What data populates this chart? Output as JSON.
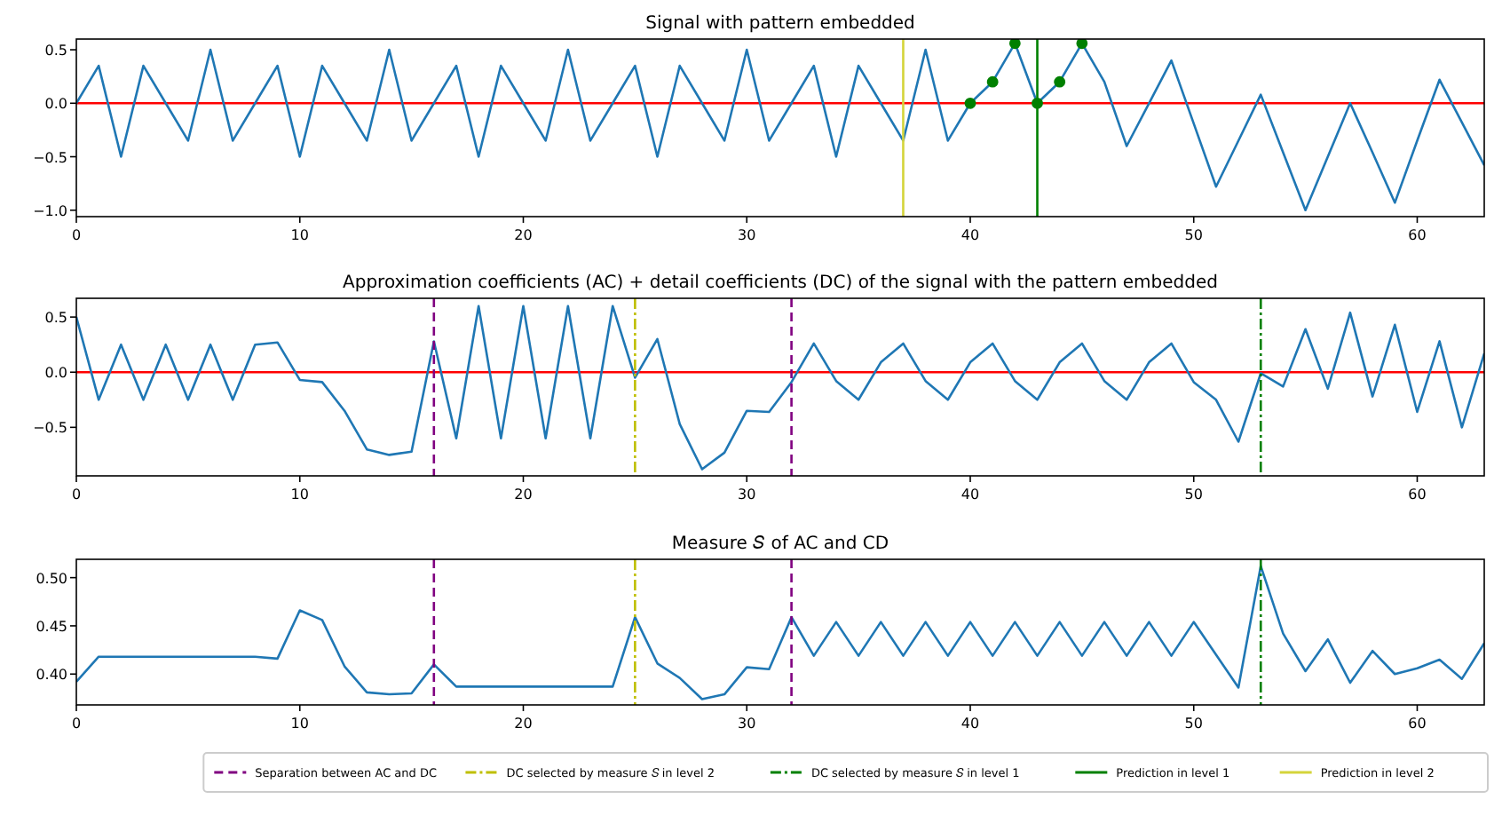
{
  "chart_data": [
    {
      "type": "line",
      "title": "Signal with pattern embedded",
      "legend": "bottom",
      "xlim": [
        0,
        63
      ],
      "xticks": [
        0,
        10,
        20,
        30,
        40,
        50,
        60
      ],
      "ylim": [
        -1.06,
        0.6
      ],
      "yticks": [
        {
          "value": -1,
          "label": "−1.0"
        },
        {
          "value": -0.5,
          "label": "−0.5"
        },
        {
          "value": 0,
          "label": "0.0"
        },
        {
          "value": 0.5,
          "label": "0.5"
        }
      ],
      "series": [
        {
          "color": "#1f77b4",
          "x": [
            0,
            1,
            2,
            3,
            4,
            5,
            6,
            7,
            8,
            9,
            10,
            11,
            12,
            13,
            14,
            15,
            16,
            17,
            18,
            19,
            20,
            21,
            22,
            23,
            24,
            25,
            26,
            27,
            28,
            29,
            30,
            31,
            32,
            33,
            34,
            35,
            36,
            37,
            38,
            39,
            40,
            41,
            42,
            43,
            44,
            45,
            46,
            47,
            48,
            49,
            50,
            51,
            52,
            53,
            54,
            55,
            56,
            57,
            58,
            59,
            60,
            61,
            62,
            63
          ],
          "values": [
            0,
            0.35,
            -0.5,
            0.35,
            0,
            -0.35,
            0.5,
            -0.35,
            0,
            0.35,
            -0.5,
            0.35,
            0,
            -0.35,
            0.5,
            -0.35,
            0,
            0.35,
            -0.5,
            0.35,
            0,
            -0.35,
            0.5,
            -0.35,
            0,
            0.35,
            -0.5,
            0.35,
            0,
            -0.35,
            0.5,
            -0.35,
            0,
            0.35,
            -0.5,
            0.35,
            0,
            -0.35,
            0.5,
            -0.35,
            0,
            0.2,
            0.56,
            0,
            0.2,
            0.56,
            0.2,
            -0.4,
            0,
            0.4,
            -0.19,
            -0.78,
            -0.35,
            0.08,
            -0.46,
            -1.0,
            -0.5,
            0,
            -0.46,
            -0.93,
            -0.35,
            0.22,
            -0.18,
            -0.58
          ]
        },
        {
          "type": "scatter",
          "color": "#008000",
          "marker": "circle",
          "x": [
            40,
            41,
            42,
            43,
            44,
            45
          ],
          "values": [
            0,
            0.2,
            0.56,
            0,
            0.2,
            0.56
          ]
        }
      ],
      "ref_lines": [
        {
          "axis": "y",
          "value": 0,
          "color": "#ff0000",
          "line_style": "solid"
        },
        {
          "axis": "x",
          "value": 43,
          "color": "#008000",
          "line_style": "solid",
          "label": "Prediction in level 1"
        },
        {
          "axis": "x",
          "value": 37,
          "color": "#d4d43a",
          "line_style": "solid",
          "label": "Prediction in level 2"
        }
      ]
    },
    {
      "type": "line",
      "title": "Approximation coefficients (AC) + detail coefficients (DC) of the signal with the pattern embedded",
      "xlim": [
        0,
        63
      ],
      "xticks": [
        0,
        10,
        20,
        30,
        40,
        50,
        60
      ],
      "ylim": [
        -0.94,
        0.67
      ],
      "yticks": [
        {
          "value": -0.5,
          "label": "−0.5"
        },
        {
          "value": 0,
          "label": "0.0"
        },
        {
          "value": 0.5,
          "label": "0.5"
        }
      ],
      "series": [
        {
          "color": "#1f77b4",
          "x": [
            0,
            1,
            2,
            3,
            4,
            5,
            6,
            7,
            8,
            9,
            10,
            11,
            12,
            13,
            14,
            15,
            16,
            17,
            18,
            19,
            20,
            21,
            22,
            23,
            24,
            25,
            26,
            27,
            28,
            29,
            30,
            31,
            32,
            33,
            34,
            35,
            36,
            37,
            38,
            39,
            40,
            41,
            42,
            43,
            44,
            45,
            46,
            47,
            48,
            49,
            50,
            51,
            52,
            53,
            54,
            55,
            56,
            57,
            58,
            59,
            60,
            61,
            62,
            63
          ],
          "values": [
            0.5,
            -0.25,
            0.25,
            -0.25,
            0.25,
            -0.25,
            0.25,
            -0.25,
            0.25,
            0.27,
            -0.07,
            -0.09,
            -0.35,
            -0.7,
            -0.75,
            -0.72,
            0.28,
            -0.6,
            0.6,
            -0.6,
            0.6,
            -0.6,
            0.6,
            -0.6,
            0.6,
            -0.05,
            0.3,
            -0.47,
            -0.88,
            -0.73,
            -0.35,
            -0.36,
            -0.09,
            0.26,
            -0.08,
            -0.25,
            0.09,
            0.26,
            -0.08,
            -0.25,
            0.09,
            0.26,
            -0.08,
            -0.25,
            0.09,
            0.26,
            -0.08,
            -0.25,
            0.09,
            0.26,
            -0.09,
            -0.25,
            -0.63,
            -0.01,
            -0.13,
            0.39,
            -0.15,
            0.54,
            -0.22,
            0.43,
            -0.36,
            0.28,
            -0.5,
            0.17
          ]
        }
      ],
      "ref_lines": [
        {
          "axis": "y",
          "value": 0,
          "color": "#ff0000",
          "line_style": "solid"
        },
        {
          "axis": "x",
          "value": 16,
          "color": "#800080",
          "line_style": "dashed"
        },
        {
          "axis": "x",
          "value": 25,
          "color": "#bfbf00",
          "line_style": "dashdot"
        },
        {
          "axis": "x",
          "value": 32,
          "color": "#800080",
          "line_style": "dashed"
        },
        {
          "axis": "x",
          "value": 53,
          "color": "#008000",
          "line_style": "dashdot"
        }
      ]
    },
    {
      "type": "line",
      "title": "Measure 𝑆 of AC and CD",
      "xlim": [
        0,
        63
      ],
      "xticks": [
        0,
        10,
        20,
        30,
        40,
        50,
        60
      ],
      "ylim": [
        0.368,
        0.519
      ],
      "yticks": [
        {
          "value": 0.4,
          "label": "0.40"
        },
        {
          "value": 0.45,
          "label": "0.45"
        },
        {
          "value": 0.5,
          "label": "0.50"
        }
      ],
      "legend": "bottom",
      "series": [
        {
          "color": "#1f77b4",
          "x": [
            0,
            1,
            2,
            3,
            4,
            5,
            6,
            7,
            8,
            9,
            10,
            11,
            12,
            13,
            14,
            15,
            16,
            17,
            18,
            19,
            20,
            21,
            22,
            23,
            24,
            25,
            26,
            27,
            28,
            29,
            30,
            31,
            32,
            33,
            34,
            35,
            36,
            37,
            38,
            39,
            40,
            41,
            42,
            43,
            44,
            45,
            46,
            47,
            48,
            49,
            50,
            51,
            52,
            53,
            54,
            55,
            56,
            57,
            58,
            59,
            60,
            61,
            62,
            63
          ],
          "values": [
            0.392,
            0.418,
            0.418,
            0.418,
            0.418,
            0.418,
            0.418,
            0.418,
            0.418,
            0.416,
            0.466,
            0.456,
            0.408,
            0.381,
            0.379,
            0.38,
            0.41,
            0.387,
            0.387,
            0.387,
            0.387,
            0.387,
            0.387,
            0.387,
            0.387,
            0.459,
            0.411,
            0.396,
            0.374,
            0.379,
            0.407,
            0.405,
            0.459,
            0.419,
            0.454,
            0.419,
            0.454,
            0.419,
            0.454,
            0.419,
            0.454,
            0.419,
            0.454,
            0.419,
            0.454,
            0.419,
            0.454,
            0.419,
            0.454,
            0.419,
            0.454,
            0.42,
            0.386,
            0.512,
            0.442,
            0.403,
            0.436,
            0.391,
            0.424,
            0.4,
            0.406,
            0.415,
            0.395,
            0.432
          ]
        }
      ],
      "ref_lines": [
        {
          "axis": "x",
          "value": 16,
          "color": "#800080",
          "line_style": "dashed",
          "label": "Separation between AC and DC"
        },
        {
          "axis": "x",
          "value": 25,
          "color": "#bfbf00",
          "line_style": "dashdot",
          "label": "DC selected by measure 𝑆 in level 2"
        },
        {
          "axis": "x",
          "value": 32,
          "color": "#800080",
          "line_style": "dashed"
        },
        {
          "axis": "x",
          "value": 53,
          "color": "#008000",
          "line_style": "dashdot",
          "label": "DC selected by measure 𝑆 in level 1"
        }
      ]
    }
  ]
}
